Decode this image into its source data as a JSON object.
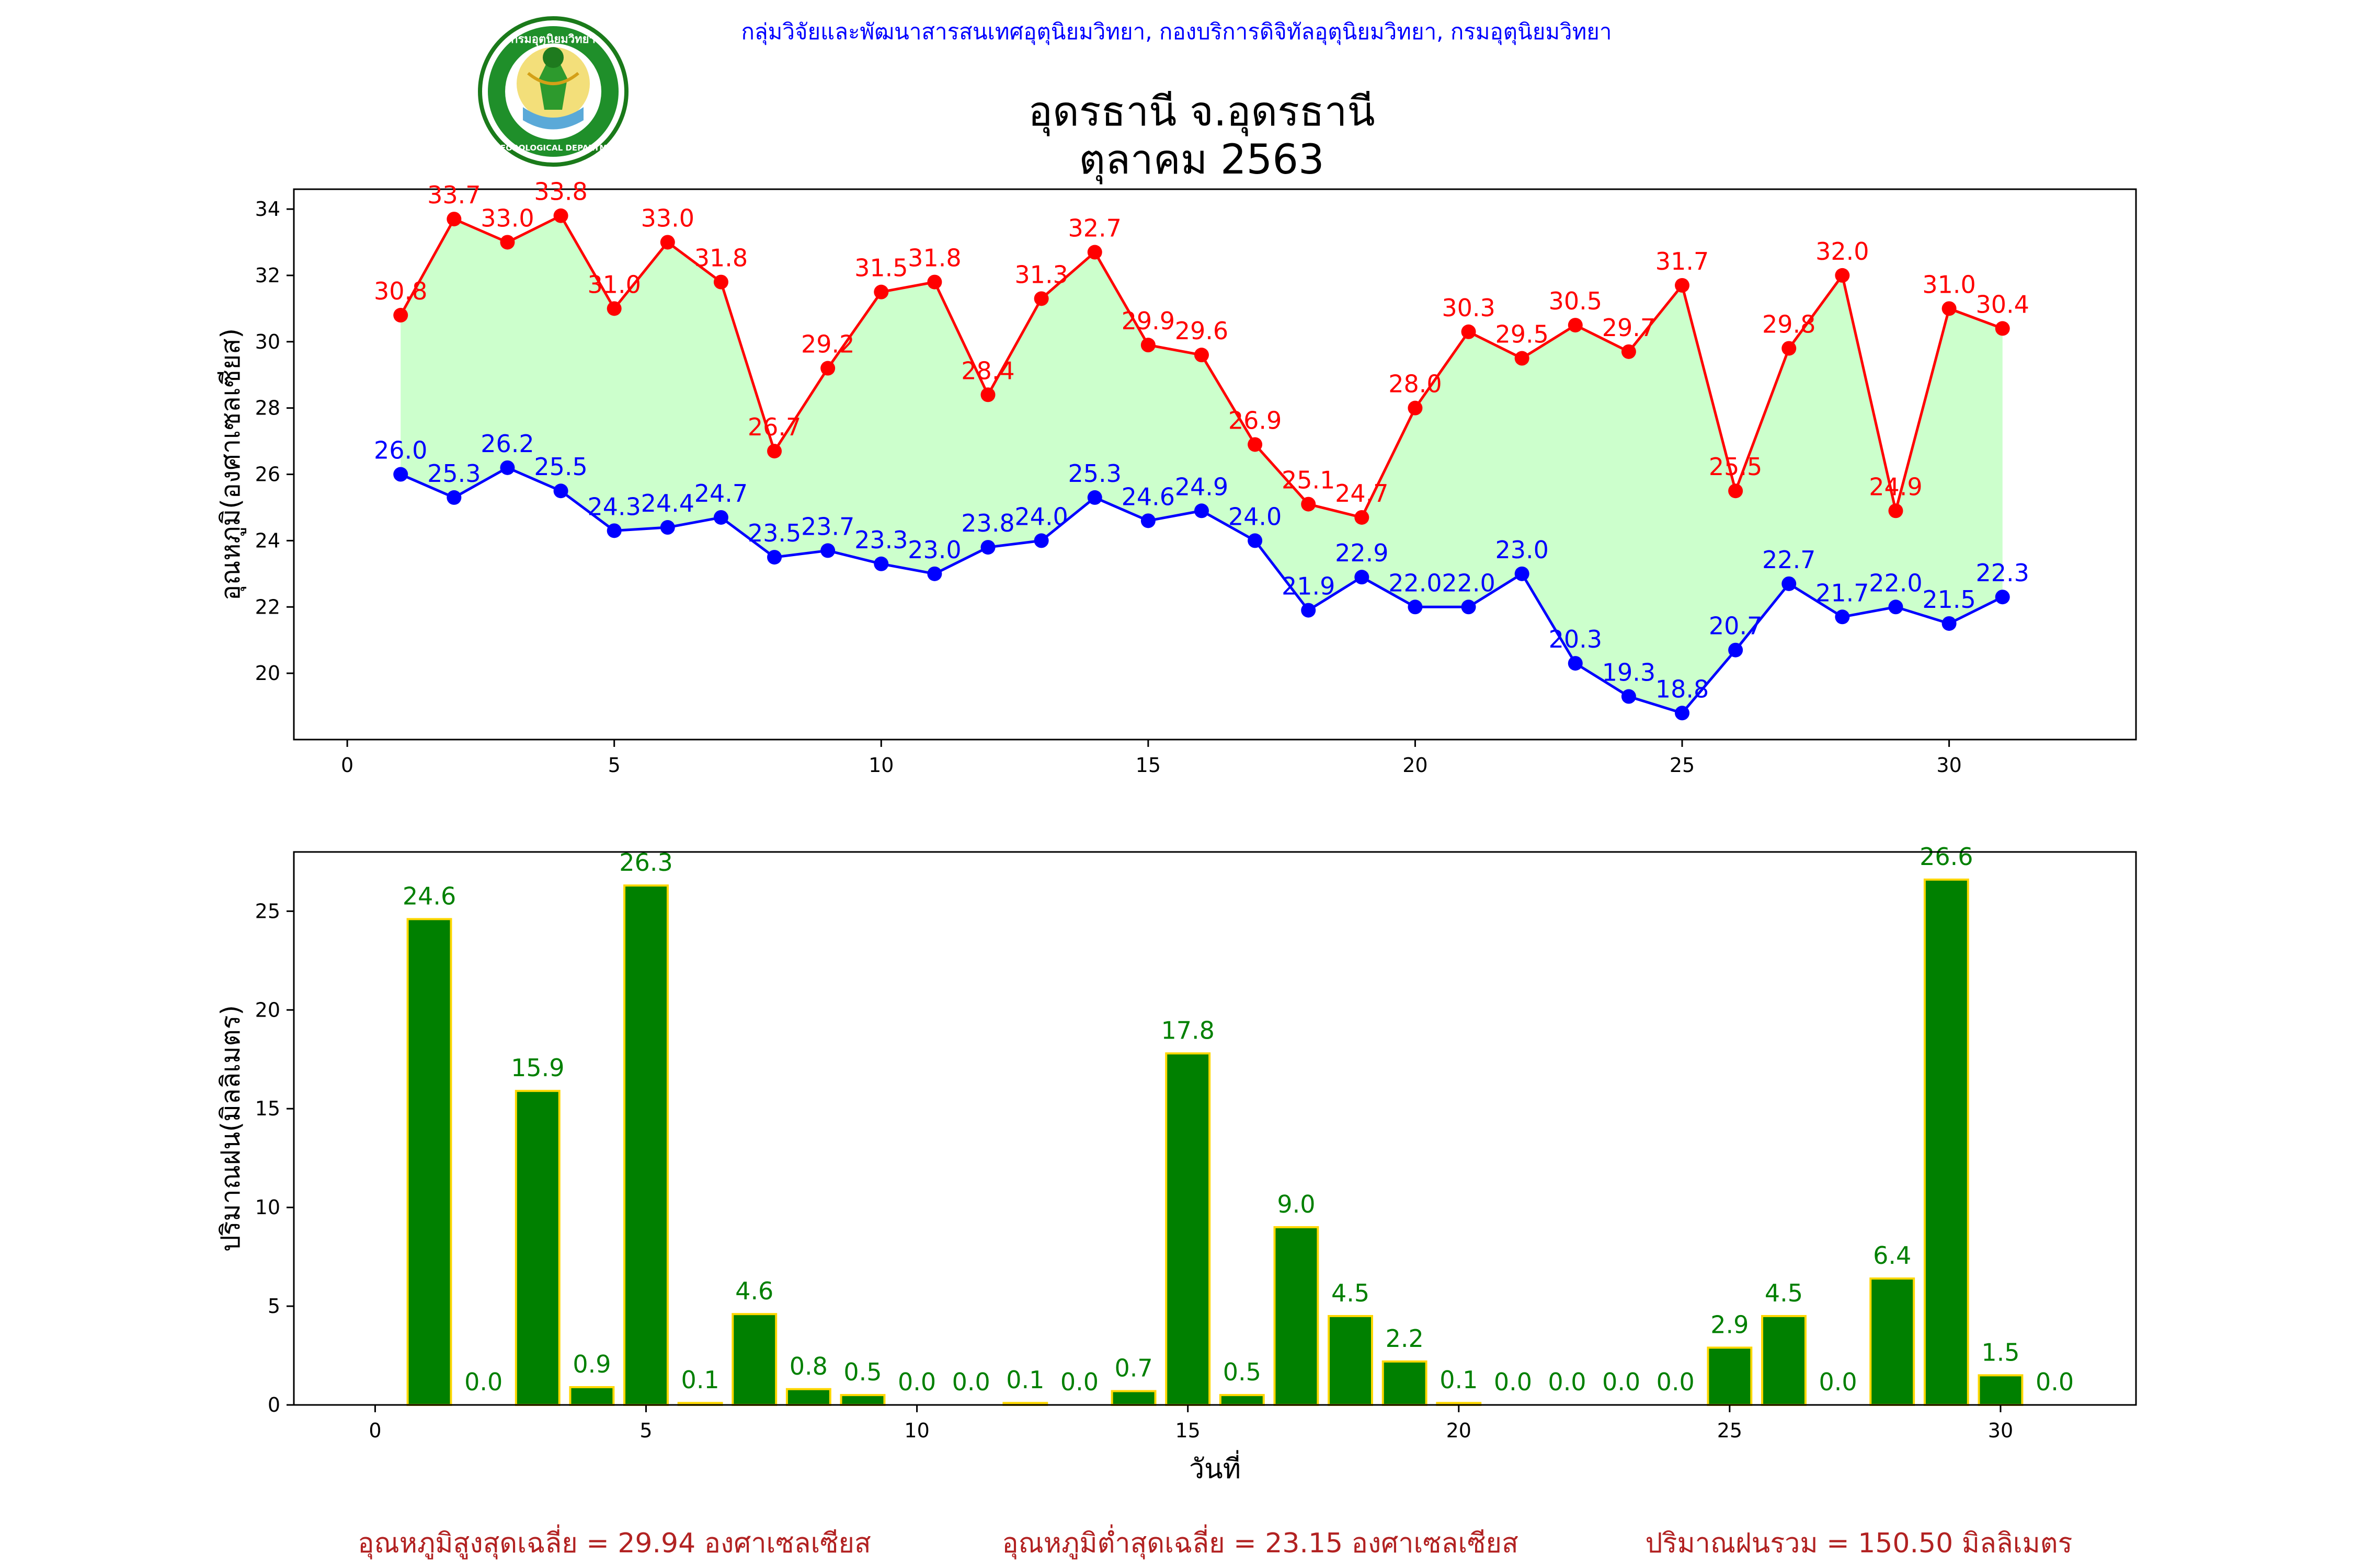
{
  "header": {
    "agency": "กลุ่มวิจัยและพัฒนาสารสนเทศอุตุนิยมวิทยา, กองบริการดิจิทัลอุตุนิยมวิทยา, กรมอุตุนิยมวิทยา",
    "title_line1": "อุดรธานี จ.อุดรธานี",
    "title_line2": "ตุลาคม 2563",
    "logo_top_text": "กรมอุตุนิยมวิทยา",
    "logo_bottom_text": "METEOROLOGICAL DEPARTMENT"
  },
  "colors": {
    "max_temp": "#ff0000",
    "min_temp": "#0000ff",
    "fill": "#ccffcc",
    "rain_bar": "#008000",
    "rain_edge": "#ffd700",
    "rain_label": "#008000",
    "header_blue": "#0000ff",
    "summary": "#b22222"
  },
  "chart_data": [
    {
      "type": "line",
      "ylabel": "อุณหภูมิ(องศาเซลเซียส)",
      "xlabel": "",
      "xlim": [
        -1,
        33.5
      ],
      "ylim": [
        18,
        34.6
      ],
      "xticks": [
        0,
        5,
        10,
        15,
        20,
        25,
        30
      ],
      "yticks": [
        20,
        22,
        24,
        26,
        28,
        30,
        32,
        34
      ],
      "x": [
        1,
        2,
        3,
        4,
        5,
        6,
        7,
        8,
        9,
        10,
        11,
        12,
        13,
        14,
        15,
        16,
        17,
        18,
        19,
        20,
        21,
        22,
        23,
        24,
        25,
        26,
        27,
        28,
        29,
        30,
        31
      ],
      "series": [
        {
          "key": "max",
          "values": [
            30.8,
            33.7,
            33.0,
            33.8,
            31.0,
            33.0,
            31.8,
            26.7,
            29.2,
            31.5,
            31.8,
            28.4,
            31.3,
            32.7,
            29.9,
            29.6,
            26.9,
            25.1,
            24.7,
            28.0,
            30.3,
            29.5,
            30.5,
            29.7,
            31.7,
            25.5,
            29.8,
            32.0,
            24.9,
            31.0,
            30.4
          ]
        },
        {
          "key": "min",
          "values": [
            26.0,
            25.3,
            26.2,
            25.5,
            24.3,
            24.4,
            24.7,
            23.5,
            23.7,
            23.3,
            23.0,
            23.8,
            24.0,
            25.3,
            24.6,
            24.9,
            24.0,
            21.9,
            22.9,
            22.0,
            22.0,
            23.0,
            20.3,
            19.3,
            18.8,
            20.7,
            22.7,
            21.7,
            22.0,
            21.5,
            22.3
          ]
        }
      ]
    },
    {
      "type": "bar",
      "ylabel": "ปริมาณฝน(มิลลิเมตร)",
      "xlabel": "วันที่",
      "xlim": [
        -1.5,
        32.5
      ],
      "ylim": [
        0,
        28
      ],
      "xticks": [
        0,
        5,
        10,
        15,
        20,
        25,
        30
      ],
      "yticks": [
        0,
        5,
        10,
        15,
        20,
        25
      ],
      "x": [
        1,
        2,
        3,
        4,
        5,
        6,
        7,
        8,
        9,
        10,
        11,
        12,
        13,
        14,
        15,
        16,
        17,
        18,
        19,
        20,
        21,
        22,
        23,
        24,
        25,
        26,
        27,
        28,
        29,
        30,
        31
      ],
      "values": [
        24.6,
        0.0,
        15.9,
        0.9,
        26.3,
        0.1,
        4.6,
        0.8,
        0.5,
        0.0,
        0.0,
        0.1,
        0.0,
        0.7,
        17.8,
        0.5,
        9.0,
        4.5,
        2.2,
        0.1,
        0.0,
        0.0,
        0.0,
        0.0,
        2.9,
        4.5,
        0.0,
        6.4,
        26.6,
        1.5,
        0.0
      ]
    }
  ],
  "summary": {
    "avg_max": "อุณหภูมิสูงสุดเฉลี่ย = 29.94 องศาเซลเซียส",
    "avg_min": "อุณหภูมิต่ำสุดเฉลี่ย = 23.15 องศาเซลเซียส",
    "total_rain": "ปริมาณฝนรวม = 150.50 มิลลิเมตร"
  }
}
